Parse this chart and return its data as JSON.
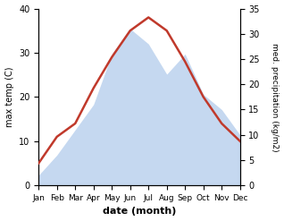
{
  "months": [
    "Jan",
    "Feb",
    "Mar",
    "Apr",
    "May",
    "Jun",
    "Jul",
    "Aug",
    "Sep",
    "Oct",
    "Nov",
    "Dec"
  ],
  "temperature": [
    5,
    11,
    14,
    22,
    29,
    35,
    38,
    35,
    28,
    20,
    14,
    10
  ],
  "precipitation": [
    2,
    6,
    11,
    16,
    26,
    31,
    28,
    22,
    26,
    18,
    15,
    10
  ],
  "temp_color": "#c0392b",
  "precip_color_fill": "#c5d8f0",
  "temp_ylim": [
    0,
    40
  ],
  "precip_ylim": [
    0,
    35
  ],
  "xlabel": "date (month)",
  "ylabel_left": "max temp (C)",
  "ylabel_right": "med. precipitation (kg/m2)",
  "bg_color": "#ffffff",
  "temp_linewidth": 1.8
}
